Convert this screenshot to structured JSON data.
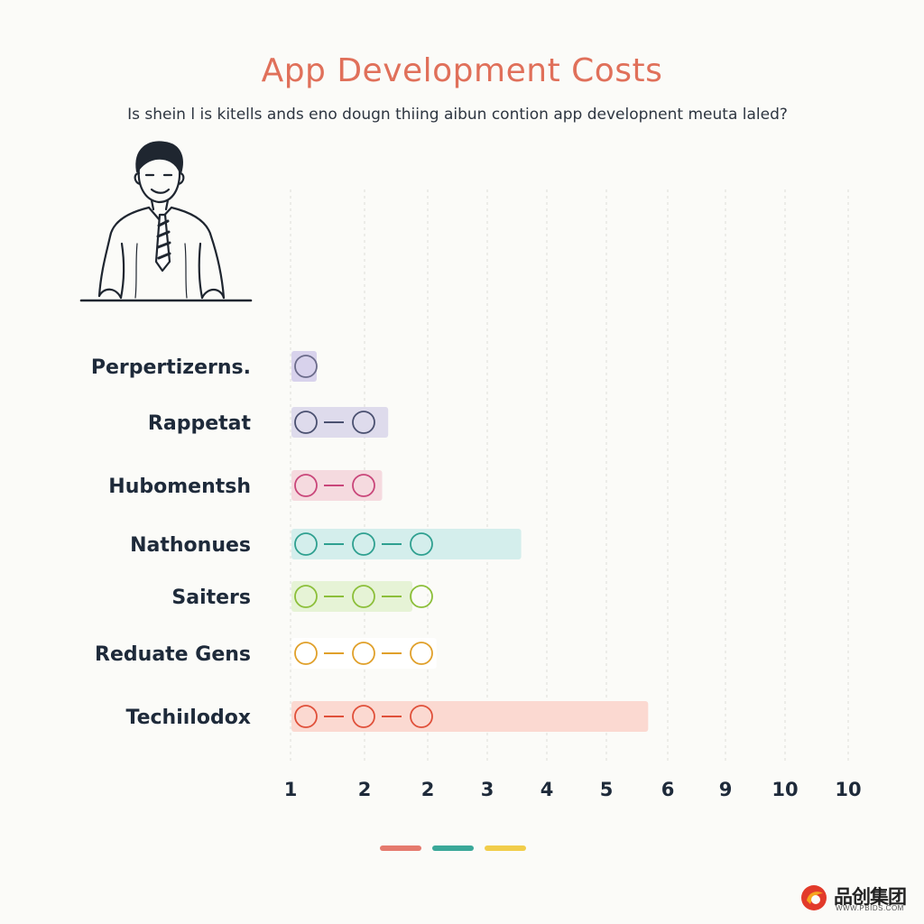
{
  "chart_data": {
    "type": "bar",
    "title": "App Development Costs",
    "subtitle": "Is shein l is kitells ands eno dougn thiing aibun contion app developnent meuta laled?",
    "categories": [
      "Perpertizerns.",
      "Rappetat",
      "Hubomentsh",
      "Nathonues",
      "Saiters",
      "Reduate Gens",
      "Techiılodox"
    ],
    "values": [
      0.2,
      1.6,
      1.5,
      3.8,
      2.0,
      2.4,
      5.9
    ],
    "bar_colors": [
      "#d8d2ec",
      "#dedbec",
      "#f5dadf",
      "#d4eeec",
      "#e6f3d6",
      "#ffffff",
      "#fbd9d1"
    ],
    "icon_colors": [
      "#6b6b8a",
      "#4a5070",
      "#c9467a",
      "#2fa090",
      "#8cbf3a",
      "#e0a02a",
      "#e0503a"
    ],
    "icons_per_row": [
      1,
      2,
      2,
      3,
      3,
      3,
      3
    ],
    "x_tick_labels": [
      "1",
      "2",
      "2",
      "3",
      "4",
      "5",
      "6",
      "9",
      "10",
      "10"
    ],
    "grid": true,
    "legend_swatches": [
      "#e57a6e",
      "#3aa899",
      "#f1cd4a"
    ]
  },
  "watermark": {
    "text": "品创集团",
    "url": "WWW.PBIDS.COM"
  }
}
